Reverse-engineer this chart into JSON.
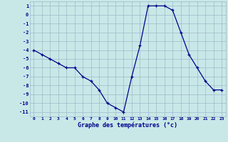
{
  "hours": [
    0,
    1,
    2,
    3,
    4,
    5,
    6,
    7,
    8,
    9,
    10,
    11,
    12,
    13,
    14,
    15,
    16,
    17,
    18,
    19,
    20,
    21,
    22,
    23
  ],
  "temps": [
    -4,
    -4.5,
    -5,
    -5.5,
    -6,
    -6,
    -7,
    -7.5,
    -8.5,
    -10,
    -10.5,
    -11,
    -7,
    -3.5,
    1,
    1,
    1,
    0.5,
    -2,
    -4.5,
    -6,
    -7.5,
    -8.5,
    -8.5
  ],
  "line_color": "#00008b",
  "marker_color": "#00008b",
  "bg_color": "#c8e8e8",
  "grid_color": "#a0b8c8",
  "xlabel": "Graphe des températures (°c)",
  "xlabel_color": "#00008b",
  "xlim": [
    -0.5,
    23.5
  ],
  "ylim": [
    -11.5,
    1.5
  ],
  "yticks": [
    1,
    0,
    -1,
    -2,
    -3,
    -4,
    -5,
    -6,
    -7,
    -8,
    -9,
    -10,
    -11
  ],
  "xtick_labels": [
    "0",
    "1",
    "2",
    "3",
    "4",
    "5",
    "6",
    "7",
    "8",
    "9",
    "10",
    "11",
    "12",
    "13",
    "14",
    "15",
    "16",
    "17",
    "18",
    "19",
    "20",
    "21",
    "22",
    "23"
  ],
  "figsize": [
    3.2,
    2.0
  ],
  "dpi": 100
}
